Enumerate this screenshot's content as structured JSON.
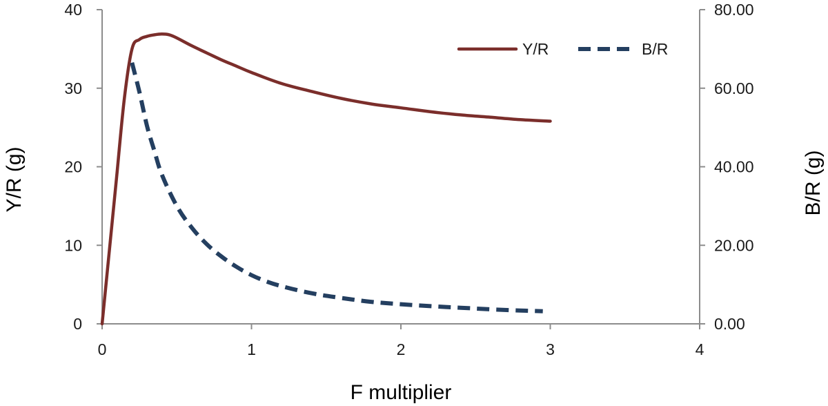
{
  "chart_data": {
    "type": "line",
    "xlabel": "F multiplier",
    "ylabel": "Y/R (g)",
    "y2label": "B/R (g)",
    "xlim": [
      0,
      4
    ],
    "ylim": [
      0,
      40
    ],
    "y2lim": [
      0,
      80
    ],
    "x_ticks": [
      "0",
      "1",
      "2",
      "3",
      "4"
    ],
    "y_ticks": [
      "0",
      "10",
      "20",
      "30",
      "40"
    ],
    "y2_ticks": [
      "0.00",
      "20.00",
      "40.00",
      "60.00",
      "80.00"
    ],
    "grid": false,
    "legend_position": "top-right",
    "series": [
      {
        "name": "Y/R",
        "axis": "left",
        "color": "#7b2e2b",
        "style": "solid",
        "x": [
          0,
          0.05,
          0.1,
          0.15,
          0.2,
          0.25,
          0.3,
          0.35,
          0.4,
          0.45,
          0.5,
          0.6,
          0.7,
          0.8,
          0.9,
          1.0,
          1.2,
          1.4,
          1.6,
          1.8,
          2.0,
          2.2,
          2.4,
          2.6,
          2.8,
          3.0
        ],
        "values": [
          0,
          9.6,
          19.3,
          28.9,
          35.0,
          36.2,
          36.6,
          36.8,
          36.9,
          36.8,
          36.4,
          35.4,
          34.5,
          33.6,
          32.8,
          32.0,
          30.6,
          29.6,
          28.7,
          28.0,
          27.5,
          27.0,
          26.6,
          26.3,
          26.0,
          25.8
        ]
      },
      {
        "name": "B/R",
        "axis": "right",
        "color": "#243f60",
        "style": "dashed",
        "x": [
          0.2,
          0.25,
          0.3,
          0.35,
          0.4,
          0.5,
          0.6,
          0.7,
          0.8,
          0.9,
          1.0,
          1.1,
          1.2,
          1.4,
          1.6,
          1.8,
          2.0,
          2.2,
          2.4,
          2.6,
          2.8,
          2.95
        ],
        "values": [
          66.5,
          59.0,
          50.5,
          44.0,
          38.0,
          30.0,
          24.5,
          20.3,
          17.1,
          14.5,
          12.4,
          10.8,
          9.6,
          7.8,
          6.6,
          5.6,
          5.0,
          4.5,
          4.1,
          3.7,
          3.4,
          3.2
        ]
      }
    ]
  }
}
